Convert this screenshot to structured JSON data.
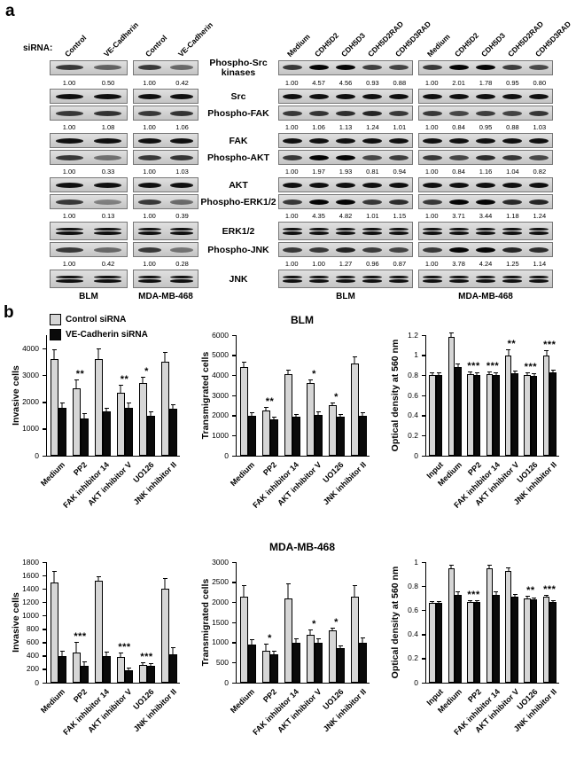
{
  "figure": {
    "panel_a_label": "a",
    "panel_b_label": "b"
  },
  "panel_a": {
    "sirna_label": "siRNA:",
    "left_lanes": [
      "Control",
      "VE-Cadherin"
    ],
    "right_lanes": [
      "Medium",
      "CDH5D2",
      "CDH5D3",
      "CDH5D2RAD",
      "CDH5D3RAD"
    ],
    "left_groups": [
      "BLM",
      "MDA-MB-468"
    ],
    "right_groups": [
      "BLM",
      "MDA-MB-468"
    ],
    "rows": [
      {
        "label": "Phospho-Src kinases",
        "phospho": true,
        "double": false,
        "left": [
          [
            "1.00",
            "0.50"
          ],
          [
            "1.00",
            "0.42"
          ]
        ],
        "right": [
          [
            "1.00",
            "4.57",
            "4.56",
            "0.93",
            "0.88"
          ],
          [
            "1.00",
            "2.01",
            "1.78",
            "0.95",
            "0.80"
          ]
        ]
      },
      {
        "label": "Src",
        "phospho": false,
        "double": false
      },
      {
        "label": "Phospho-FAK",
        "phospho": true,
        "double": false,
        "left": [
          [
            "1.00",
            "1.08"
          ],
          [
            "1.00",
            "1.06"
          ]
        ],
        "right": [
          [
            "1.00",
            "1.06",
            "1.13",
            "1.24",
            "1.01"
          ],
          [
            "1.00",
            "0.84",
            "0.95",
            "0.88",
            "1.03"
          ]
        ]
      },
      {
        "label": "FAK",
        "phospho": false,
        "double": false
      },
      {
        "label": "Phospho-AKT",
        "phospho": true,
        "double": false,
        "left": [
          [
            "1.00",
            "0.33"
          ],
          [
            "1.00",
            "1.03"
          ]
        ],
        "right": [
          [
            "1.00",
            "1.97",
            "1.93",
            "0.81",
            "0.94"
          ],
          [
            "1.00",
            "0.84",
            "1.16",
            "1.04",
            "0.82"
          ]
        ]
      },
      {
        "label": "AKT",
        "phospho": false,
        "double": false
      },
      {
        "label": "Phospho-ERK1/2",
        "phospho": true,
        "double": false,
        "left": [
          [
            "1.00",
            "0.13"
          ],
          [
            "1.00",
            "0.39"
          ]
        ],
        "right": [
          [
            "1.00",
            "4.35",
            "4.82",
            "1.01",
            "1.15"
          ],
          [
            "1.00",
            "3.71",
            "3.44",
            "1.18",
            "1.24"
          ]
        ]
      },
      {
        "label": "ERK1/2",
        "phospho": false,
        "double": true
      },
      {
        "label": "Phospho-JNK",
        "phospho": true,
        "double": false,
        "left": [
          [
            "1.00",
            "0.42"
          ],
          [
            "1.00",
            "0.28"
          ]
        ],
        "right": [
          [
            "1.00",
            "1.00",
            "1.27",
            "0.96",
            "0.87"
          ],
          [
            "1.00",
            "3.78",
            "4.24",
            "1.25",
            "1.14"
          ]
        ]
      },
      {
        "label": "JNK",
        "phospho": false,
        "double": true
      }
    ]
  },
  "panel_b": {
    "legend": [
      {
        "label": "Control siRNA",
        "color": "#d6d6d6"
      },
      {
        "label": "VE-Cadherin siRNA",
        "color": "#0a0a0a"
      }
    ]
  },
  "chart_data": [
    {
      "type": "bar",
      "cell_line": "BLM",
      "title": "",
      "ylabel": "Invasive cells",
      "ymin": 0,
      "ymax": 4500,
      "yticks": [
        0,
        1000,
        2000,
        3000,
        4000
      ],
      "ytick_labels": [
        "0",
        "1000",
        "2000",
        "3000",
        "4000"
      ],
      "categories": [
        "Medium",
        "PP2",
        "FAK inhibitor 14",
        "AKT inhibitor V",
        "UO126",
        "JNK inhibitor II"
      ],
      "series": [
        {
          "name": "Control siRNA",
          "color": "#d6d6d6",
          "values": [
            3600,
            2500,
            3600,
            2350,
            2700,
            3500
          ],
          "errors": [
            350,
            300,
            380,
            250,
            200,
            350
          ]
        },
        {
          "name": "VE-Cadherin siRNA",
          "color": "#0a0a0a",
          "values": [
            1800,
            1400,
            1650,
            1800,
            1500,
            1750
          ],
          "errors": [
            150,
            150,
            120,
            150,
            120,
            150
          ]
        }
      ],
      "sig": [
        "",
        "**",
        "",
        "**",
        "*",
        ""
      ]
    },
    {
      "type": "bar",
      "cell_line": "BLM",
      "title": "BLM",
      "ylabel": "Transmigrated cells",
      "ymin": 0,
      "ymax": 6000,
      "yticks": [
        0,
        1000,
        2000,
        3000,
        4000,
        5000,
        6000
      ],
      "ytick_labels": [
        "0",
        "1000",
        "2000",
        "3000",
        "4000",
        "5000",
        "6000"
      ],
      "categories": [
        "Medium",
        "PP2",
        "FAK inhibitor 14",
        "AKT inhibitor V",
        "UO126",
        "JNK inhibitor II"
      ],
      "series": [
        {
          "name": "Control siRNA",
          "color": "#d6d6d6",
          "values": [
            4400,
            2250,
            4050,
            3600,
            2500,
            4600
          ],
          "errors": [
            250,
            150,
            200,
            150,
            120,
            300
          ]
        },
        {
          "name": "VE-Cadherin siRNA",
          "color": "#0a0a0a",
          "values": [
            2000,
            1800,
            1950,
            2050,
            1950,
            2000
          ],
          "errors": [
            120,
            100,
            100,
            100,
            100,
            100
          ]
        }
      ],
      "sig": [
        "",
        "**",
        "",
        "*",
        "*",
        ""
      ]
    },
    {
      "type": "bar",
      "cell_line": "BLM",
      "title": "",
      "ylabel": "Optical density at 560 nm",
      "ymin": 0,
      "ymax": 1.2,
      "yticks": [
        0,
        0.2,
        0.4,
        0.6,
        0.8,
        1,
        1.2
      ],
      "ytick_labels": [
        "0",
        "0.2",
        "0.4",
        "0.6",
        "0.8",
        "1",
        "1.2"
      ],
      "categories": [
        "Input",
        "Medium",
        "PP2",
        "FAK inhibitor 14",
        "AKT inhibitor V",
        "UO126",
        "JNK inhibitor II"
      ],
      "series": [
        {
          "name": "Control siRNA",
          "color": "#d6d6d6",
          "values": [
            0.8,
            1.18,
            0.81,
            0.81,
            1.0,
            0.8,
            1.0
          ],
          "errors": [
            0.02,
            0.04,
            0.02,
            0.02,
            0.05,
            0.02,
            0.04
          ]
        },
        {
          "name": "VE-Cadherin siRNA",
          "color": "#0a0a0a",
          "values": [
            0.8,
            0.88,
            0.8,
            0.8,
            0.82,
            0.79,
            0.83
          ],
          "errors": [
            0.02,
            0.03,
            0.02,
            0.02,
            0.02,
            0.02,
            0.02
          ]
        }
      ],
      "sig": [
        "",
        "",
        "***",
        "***",
        "**",
        "***",
        "***"
      ]
    },
    {
      "type": "bar",
      "cell_line": "MDA-MB-468",
      "title": "",
      "ylabel": "Invasive cells",
      "ymin": 0,
      "ymax": 1800,
      "yticks": [
        0,
        200,
        400,
        600,
        800,
        1000,
        1200,
        1400,
        1600,
        1800
      ],
      "ytick_labels": [
        "0",
        "200",
        "400",
        "600",
        "800",
        "1000",
        "1200",
        "1400",
        "1600",
        "1800"
      ],
      "categories": [
        "Medium",
        "PP2",
        "FAK inhibitor 14",
        "AKT inhibitor V",
        "UO126",
        "JNK inhibitor II"
      ],
      "series": [
        {
          "name": "Control siRNA",
          "color": "#d6d6d6",
          "values": [
            1500,
            450,
            1520,
            380,
            260,
            1400
          ],
          "errors": [
            150,
            150,
            60,
            60,
            30,
            150
          ]
        },
        {
          "name": "VE-Cadherin siRNA",
          "color": "#0a0a0a",
          "values": [
            400,
            250,
            400,
            180,
            250,
            430
          ],
          "errors": [
            60,
            60,
            50,
            30,
            30,
            80
          ]
        }
      ],
      "sig": [
        "",
        "***",
        "",
        "***",
        "***",
        ""
      ]
    },
    {
      "type": "bar",
      "cell_line": "MDA-MB-468",
      "title": "MDA-MB-468",
      "ylabel": "Transmigrated cells",
      "ymin": 0,
      "ymax": 3000,
      "yticks": [
        0,
        500,
        1000,
        1500,
        2000,
        2500,
        3000
      ],
      "ytick_labels": [
        "0",
        "500",
        "1000",
        "1500",
        "2000",
        "2500",
        "3000"
      ],
      "categories": [
        "Medium",
        "PP2",
        "FAK inhibitor 14",
        "AKT inhibitor V",
        "UO126",
        "JNK inhibitor II"
      ],
      "series": [
        {
          "name": "Control siRNA",
          "color": "#d6d6d6",
          "values": [
            2150,
            800,
            2100,
            1200,
            1300,
            2150
          ],
          "errors": [
            250,
            150,
            350,
            100,
            50,
            250
          ]
        },
        {
          "name": "VE-Cadherin siRNA",
          "color": "#0a0a0a",
          "values": [
            950,
            700,
            1000,
            1000,
            850,
            1000
          ],
          "errors": [
            100,
            80,
            80,
            80,
            60,
            100
          ]
        }
      ],
      "sig": [
        "",
        "*",
        "",
        "*",
        "*",
        ""
      ]
    },
    {
      "type": "bar",
      "cell_line": "MDA-MB-468",
      "title": "",
      "ylabel": "Optical density at 560 nm",
      "ymin": 0,
      "ymax": 1,
      "yticks": [
        0,
        0.2,
        0.4,
        0.6,
        0.8,
        1
      ],
      "ytick_labels": [
        "0",
        "0.2",
        "0.4",
        "0.6",
        "0.8",
        "1"
      ],
      "categories": [
        "Input",
        "Medium",
        "PP2",
        "FAK inhibitor 14",
        "AKT inhibitor V",
        "UO126",
        "JNK inhibitor II"
      ],
      "series": [
        {
          "name": "Control siRNA",
          "color": "#d6d6d6",
          "values": [
            0.66,
            0.95,
            0.67,
            0.95,
            0.93,
            0.7,
            0.71
          ],
          "errors": [
            0.01,
            0.02,
            0.01,
            0.02,
            0.02,
            0.01,
            0.01
          ]
        },
        {
          "name": "VE-Cadherin siRNA",
          "color": "#0a0a0a",
          "values": [
            0.66,
            0.73,
            0.67,
            0.73,
            0.71,
            0.69,
            0.67
          ],
          "errors": [
            0.01,
            0.02,
            0.01,
            0.02,
            0.02,
            0.01,
            0.01
          ]
        }
      ],
      "sig": [
        "",
        "",
        "***",
        "",
        "",
        "**",
        "***"
      ]
    }
  ]
}
